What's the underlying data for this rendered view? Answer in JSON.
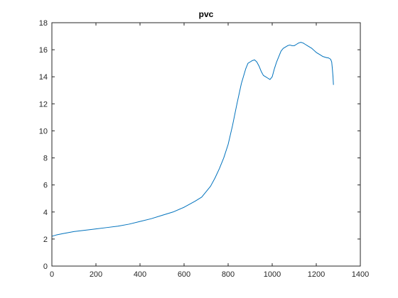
{
  "chart_data": {
    "type": "line",
    "title": "pvc",
    "xlabel": "",
    "ylabel": "",
    "xlim": [
      0,
      1400
    ],
    "ylim": [
      0,
      18
    ],
    "xticks": [
      0,
      200,
      400,
      600,
      800,
      1000,
      1200,
      1400
    ],
    "yticks": [
      0,
      2,
      4,
      6,
      8,
      10,
      12,
      14,
      16,
      18
    ],
    "xtick_labels": [
      "0",
      "200",
      "400",
      "600",
      "800",
      "1000",
      "1200",
      "1400"
    ],
    "ytick_labels": [
      "0",
      "2",
      "4",
      "6",
      "8",
      "10",
      "12",
      "14",
      "16",
      "18"
    ],
    "grid": false,
    "legend": "none",
    "series": [
      {
        "color": "#0072BD",
        "x": [
          0,
          20,
          50,
          100,
          150,
          200,
          250,
          300,
          350,
          400,
          450,
          500,
          550,
          600,
          650,
          680,
          700,
          720,
          740,
          760,
          780,
          800,
          820,
          840,
          860,
          880,
          890,
          900,
          910,
          920,
          930,
          940,
          950,
          960,
          970,
          980,
          990,
          1000,
          1010,
          1020,
          1030,
          1040,
          1050,
          1060,
          1070,
          1080,
          1090,
          1100,
          1110,
          1120,
          1130,
          1140,
          1150,
          1160,
          1170,
          1180,
          1190,
          1200,
          1210,
          1220,
          1230,
          1240,
          1250,
          1255,
          1260,
          1265,
          1270,
          1273,
          1276,
          1278
        ],
        "y": [
          2.2,
          2.3,
          2.4,
          2.55,
          2.65,
          2.75,
          2.85,
          2.95,
          3.1,
          3.3,
          3.5,
          3.75,
          4.0,
          4.35,
          4.8,
          5.1,
          5.5,
          5.9,
          6.5,
          7.2,
          8.0,
          9.0,
          10.4,
          12.0,
          13.5,
          14.6,
          15.0,
          15.1,
          15.2,
          15.25,
          15.1,
          14.8,
          14.4,
          14.1,
          14.0,
          13.9,
          13.8,
          14.0,
          14.6,
          15.1,
          15.5,
          15.9,
          16.1,
          16.2,
          16.3,
          16.35,
          16.3,
          16.3,
          16.4,
          16.5,
          16.55,
          16.5,
          16.4,
          16.3,
          16.2,
          16.1,
          15.95,
          15.8,
          15.7,
          15.6,
          15.5,
          15.45,
          15.4,
          15.4,
          15.35,
          15.3,
          15.1,
          14.6,
          14.0,
          13.4
        ]
      }
    ]
  }
}
